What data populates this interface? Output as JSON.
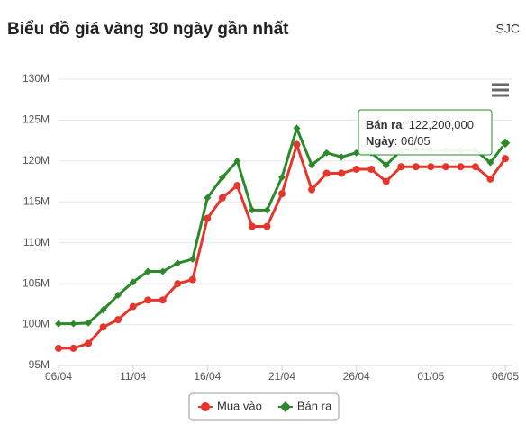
{
  "chart_data": {
    "type": "line",
    "title": "Biểu đồ giá vàng 30 ngày gần nhất",
    "subtitle": "SJC",
    "categories": [
      "06/04",
      null,
      null,
      null,
      null,
      "11/04",
      null,
      null,
      null,
      null,
      "16/04",
      null,
      null,
      null,
      null,
      "21/04",
      null,
      null,
      null,
      null,
      "26/04",
      null,
      null,
      null,
      null,
      "01/05",
      null,
      null,
      null,
      null,
      "06/05"
    ],
    "series": [
      {
        "name": "Mua vào",
        "color": "#e8352b",
        "values": [
          97100000,
          97100000,
          97700000,
          99700000,
          100600000,
          102200000,
          103000000,
          103000000,
          105000000,
          105500000,
          113000000,
          115500000,
          117000000,
          112000000,
          112000000,
          116000000,
          122000000,
          116500000,
          118500000,
          118500000,
          119000000,
          119000000,
          117500000,
          119300000,
          119300000,
          119300000,
          119300000,
          119300000,
          119300000,
          117800000,
          120300000
        ]
      },
      {
        "name": "Bán ra",
        "color": "#2a8a2a",
        "values": [
          100100000,
          100100000,
          100200000,
          101800000,
          103600000,
          105200000,
          106500000,
          106500000,
          107500000,
          108000000,
          115500000,
          118000000,
          120000000,
          114000000,
          114000000,
          118000000,
          124000000,
          119500000,
          121000000,
          120500000,
          121000000,
          121000000,
          119500000,
          121300000,
          121300000,
          121300000,
          121300000,
          121300000,
          121300000,
          119800000,
          122200000
        ]
      }
    ],
    "ylim": [
      95000000,
      130000000
    ],
    "yticks": [
      {
        "value": 95000000,
        "label": "95M"
      },
      {
        "value": 100000000,
        "label": "100M"
      },
      {
        "value": 105000000,
        "label": "105M"
      },
      {
        "value": 110000000,
        "label": "110M"
      },
      {
        "value": 115000000,
        "label": "115M"
      },
      {
        "value": 120000000,
        "label": "120M"
      },
      {
        "value": 125000000,
        "label": "125M"
      },
      {
        "value": 130000000,
        "label": "130M"
      }
    ],
    "grid": true,
    "tooltip": {
      "x_label": "Ngày",
      "value": "122,200,000"
    }
  }
}
